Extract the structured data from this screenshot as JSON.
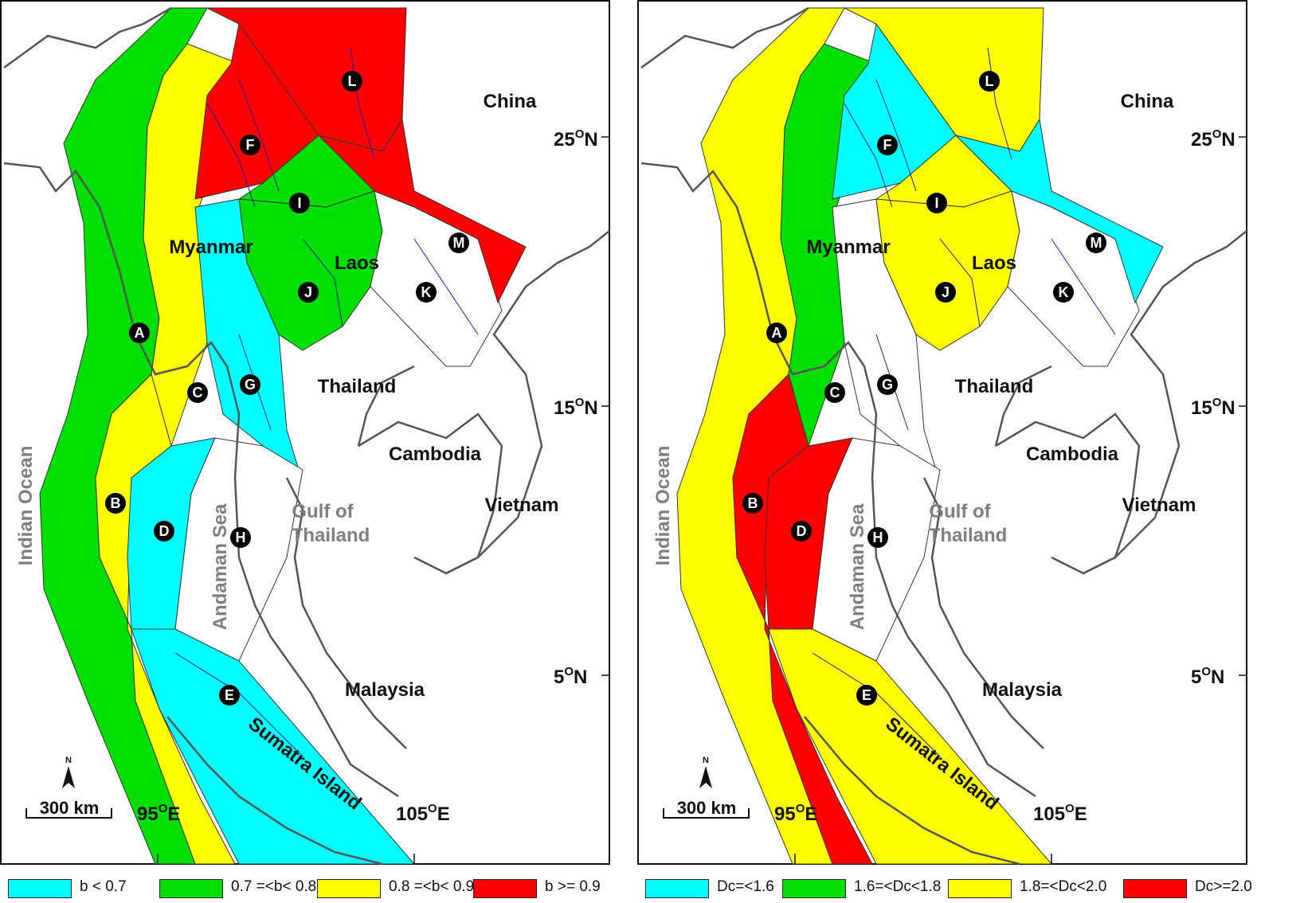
{
  "left_panel": {
    "labels": {
      "china": "China",
      "myanmar": "Myanmar",
      "laos": "Laos",
      "thailand": "Thailand",
      "cambodia": "Cambodia",
      "vietnam": "Vietnam",
      "malaysia": "Malaysia",
      "indian_ocean": "Indian Ocean",
      "andaman_sea": "Andaman Sea",
      "gulf_1": "Gulf of",
      "gulf_2": "Thailand",
      "sumatra": "Sumatra Island"
    },
    "coords": {
      "lat25": "25",
      "lat15": "15",
      "lat5": "5",
      "lon95": "95",
      "lon105": "105",
      "deg": "O",
      "n": "N",
      "e": "E"
    },
    "north_arrow": "N",
    "scale_bar": "300 km",
    "zone_colors": {
      "A": "#00e000",
      "B": "#ffff00",
      "C": "#ffff00",
      "D": "#00ffff",
      "E": "#00ffff",
      "F": "#ff0000",
      "G": "#00ffff",
      "H": "#ffffff",
      "I": "#00e000",
      "J": "#00e000",
      "K": "#ffffff",
      "L": "#ff0000",
      "M": "#ff0000"
    },
    "legend": [
      {
        "text": "b < 0.7",
        "color": "#00ffff"
      },
      {
        "text": "0.7 =<b< 0.8",
        "color": "#00e000"
      },
      {
        "text": "0.8 =<b< 0.9",
        "color": "#ffff00"
      },
      {
        "text": "b >= 0.9",
        "color": "#ff0000"
      }
    ]
  },
  "right_panel": {
    "labels": {
      "china": "China",
      "myanmar": "Myanmar",
      "laos": "Laos",
      "thailand": "Thailand",
      "cambodia": "Cambodia",
      "vietnam": "Vietnam",
      "malaysia": "Malaysia",
      "indian_ocean": "Indian Ocean",
      "andaman_sea": "Andaman Sea",
      "gulf_1": "Gulf of",
      "gulf_2": "Thailand",
      "sumatra": "Sumatra Island"
    },
    "coords": {
      "lat25": "25",
      "lat15": "15",
      "lat5": "5",
      "lon95": "95",
      "lon105": "105",
      "deg": "O",
      "n": "N",
      "e": "E"
    },
    "north_arrow": "N",
    "scale_bar": "300 km",
    "zone_colors": {
      "A": "#ffff00",
      "B": "#ff0000",
      "C": "#00e000",
      "D": "#ff0000",
      "E": "#ffff00",
      "F": "#00ffff",
      "G": "#ffffff",
      "H": "#ffffff",
      "I": "#ffff00",
      "J": "#ffff00",
      "K": "#ffffff",
      "L": "#ffff00",
      "M": "#00ffff"
    },
    "legend": [
      {
        "text": "Dc=<1.6",
        "color": "#00ffff"
      },
      {
        "text": "1.6=<Dc<1.8",
        "color": "#00e000"
      },
      {
        "text": "1.8=<Dc<2.0",
        "color": "#ffff00"
      },
      {
        "text": "Dc>=2.0",
        "color": "#ff0000"
      }
    ]
  },
  "zone_markers": [
    "A",
    "B",
    "C",
    "D",
    "E",
    "F",
    "G",
    "H",
    "I",
    "J",
    "K",
    "L",
    "M"
  ]
}
